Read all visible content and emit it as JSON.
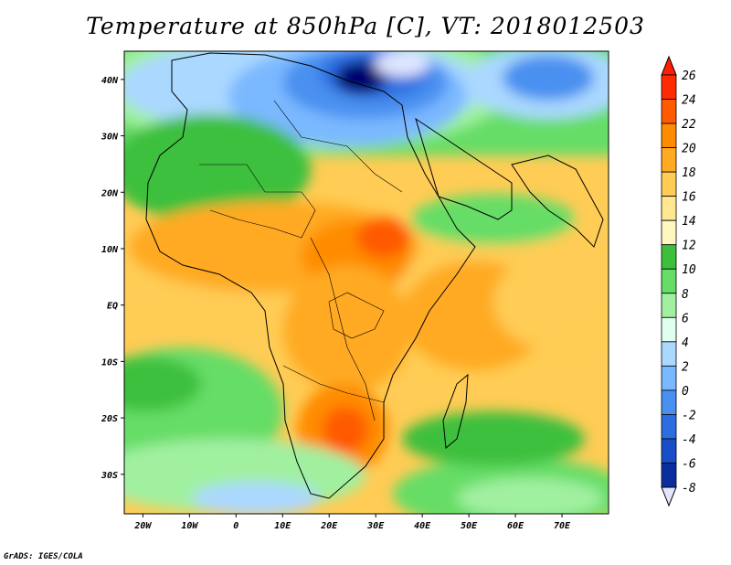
{
  "title": "Temperature at 850hPa [C], VT: 2018012503",
  "credit": "GrADS: IGES/COLA",
  "map": {
    "lon_range": [
      -24,
      80
    ],
    "lat_range": [
      -37,
      45
    ],
    "x_ticks": [
      {
        "value": -20,
        "label": "20W"
      },
      {
        "value": -10,
        "label": "10W"
      },
      {
        "value": 0,
        "label": "0"
      },
      {
        "value": 10,
        "label": "10E"
      },
      {
        "value": 20,
        "label": "20E"
      },
      {
        "value": 30,
        "label": "30E"
      },
      {
        "value": 40,
        "label": "40E"
      },
      {
        "value": 50,
        "label": "50E"
      },
      {
        "value": 60,
        "label": "60E"
      },
      {
        "value": 70,
        "label": "70E"
      }
    ],
    "y_ticks": [
      {
        "value": 40,
        "label": "40N"
      },
      {
        "value": 30,
        "label": "30N"
      },
      {
        "value": 20,
        "label": "20N"
      },
      {
        "value": 10,
        "label": "10N"
      },
      {
        "value": 0,
        "label": "EQ"
      },
      {
        "value": -10,
        "label": "10S"
      },
      {
        "value": -20,
        "label": "20S"
      },
      {
        "value": -30,
        "label": "30S"
      }
    ]
  },
  "colorbar": {
    "levels": [
      "26",
      "24",
      "22",
      "20",
      "18",
      "16",
      "14",
      "12",
      "10",
      "8",
      "6",
      "4",
      "2",
      "0",
      "-2",
      "-4",
      "-6",
      "-8"
    ],
    "colors": [
      "#ff2a00",
      "#ff5a00",
      "#ff8c00",
      "#ffaa20",
      "#ffcc55",
      "#ffe890",
      "#fff7c0",
      "#3cc03c",
      "#66dd66",
      "#a0f0a0",
      "#e0fff0",
      "#aad8ff",
      "#7ab8ff",
      "#4a90f0",
      "#2c6ee0",
      "#1a4ec8",
      "#0a2ea0",
      "#000070"
    ]
  }
}
